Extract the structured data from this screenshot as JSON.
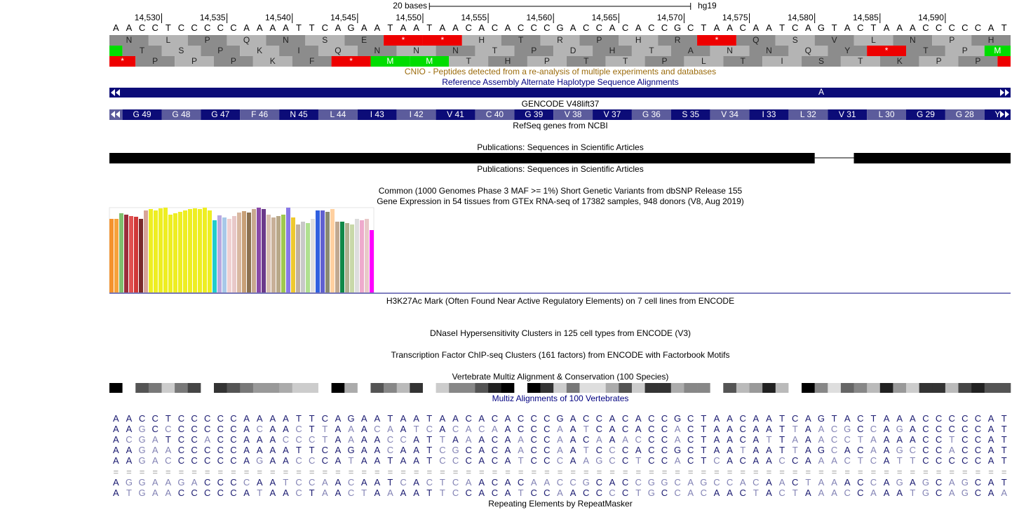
{
  "ruler": {
    "scale_bar": {
      "value": 20,
      "label": "20 bases"
    },
    "assembly": "hg19",
    "xlim": [
      14526,
      14595
    ],
    "xticks": [
      {
        "value": 14530,
        "label": "14,530"
      },
      {
        "value": 14535,
        "label": "14,535"
      },
      {
        "value": 14540,
        "label": "14,540"
      },
      {
        "value": 14545,
        "label": "14,545"
      },
      {
        "value": 14550,
        "label": "14,550"
      },
      {
        "value": 14555,
        "label": "14,555"
      },
      {
        "value": 14560,
        "label": "14,560"
      },
      {
        "value": 14565,
        "label": "14,565"
      },
      {
        "value": 14570,
        "label": "14,570"
      },
      {
        "value": 14575,
        "label": "14,575"
      },
      {
        "value": 14580,
        "label": "14,580"
      },
      {
        "value": 14585,
        "label": "14,585"
      },
      {
        "value": 14590,
        "label": "14,590"
      }
    ]
  },
  "sequence": "AACCTCCCCCAAAATTCAGAATAATAACACACCCGACCACACCGCTAACAATCAGTACTAAACCCCCAT",
  "frames": [
    {
      "start": 14526,
      "aminos": [
        "N",
        "L",
        "P",
        "Q",
        "N",
        "S",
        "E",
        "*",
        "*",
        "H",
        "T",
        "R",
        "P",
        "H",
        "R",
        "*",
        "Q",
        "S",
        "V",
        "L",
        "N",
        "P",
        "H"
      ],
      "colors": [
        "#8c8c8c",
        "#b4b4b4",
        "#8c8c8c",
        "#b4b4b4",
        "#8c8c8c",
        "#b4b4b4",
        "#8c8c8c",
        "#ee0000",
        "#ee0000",
        "#b4b4b4",
        "#8c8c8c",
        "#b4b4b4",
        "#8c8c8c",
        "#b4b4b4",
        "#8c8c8c",
        "#ee0000",
        "#8c8c8c",
        "#b4b4b4",
        "#8c8c8c",
        "#b4b4b4",
        "#8c8c8c",
        "#b4b4b4",
        "#8c8c8c"
      ]
    },
    {
      "start": 14524,
      "aminos": [
        null,
        "T",
        "S",
        "P",
        "K",
        "I",
        "Q",
        "N",
        "N",
        "N",
        "T",
        "P",
        "D",
        "H",
        "T",
        "A",
        "N",
        "N",
        "Q",
        "Y",
        "*",
        "T",
        "P",
        "M"
      ],
      "colors": [
        "#00dd00",
        "#8c8c8c",
        "#b4b4b4",
        "#8c8c8c",
        "#b4b4b4",
        "#8c8c8c",
        "#b4b4b4",
        "#8c8c8c",
        "#b4b4b4",
        "#8c8c8c",
        "#b4b4b4",
        "#8c8c8c",
        "#b4b4b4",
        "#8c8c8c",
        "#b4b4b4",
        "#8c8c8c",
        "#b4b4b4",
        "#8c8c8c",
        "#b4b4b4",
        "#8c8c8c",
        "#ee0000",
        "#8c8c8c",
        "#b4b4b4",
        "#00dd00"
      ]
    },
    {
      "start": 14525,
      "aminos": [
        "*",
        "P",
        "P",
        "P",
        "K",
        "F",
        "*",
        "M",
        "M",
        "T",
        "H",
        "P",
        "T",
        "T",
        "P",
        "L",
        "T",
        "I",
        "S",
        "T",
        "K",
        "P",
        "P",
        null
      ],
      "colors": [
        "#ee0000",
        "#8c8c8c",
        "#b4b4b4",
        "#8c8c8c",
        "#b4b4b4",
        "#8c8c8c",
        "#ee0000",
        "#00dd00",
        "#00dd00",
        "#b4b4b4",
        "#8c8c8c",
        "#b4b4b4",
        "#8c8c8c",
        "#b4b4b4",
        "#8c8c8c",
        "#b4b4b4",
        "#8c8c8c",
        "#b4b4b4",
        "#8c8c8c",
        "#b4b4b4",
        "#8c8c8c",
        "#b4b4b4",
        "#8c8c8c",
        "#ee0000"
      ]
    }
  ],
  "tracks": {
    "cnio": "CNIO - Peptides detected from a re-analysis of multiple experiments and databases",
    "alt_haplotype": {
      "title": "Reference Assembly Alternate Haplotype Sequence Alignments",
      "label": "A"
    },
    "gencode": {
      "title": "GENCODE V48lift37",
      "start": 14524,
      "exons": [
        null,
        "G 49",
        "G 48",
        "G 47",
        "F 46",
        "N 45",
        "L 44",
        "I 43",
        "I 42",
        "V 41",
        "C 40",
        "G 39",
        "V 38",
        "V 37",
        "G 36",
        "S 35",
        "V 34",
        "I 33",
        "L 32",
        "V 31",
        "L 30",
        "G 29",
        "G 28",
        "Y"
      ]
    },
    "refseq": "RefSeq genes from NCBI",
    "publications": {
      "title": "Publications: Sequences in Scientific Articles",
      "blocks": [
        [
          14526,
          14580
        ],
        [
          14583,
          14595
        ]
      ]
    },
    "publications2": "Publications: Sequences in Scientific Articles",
    "dbsnp": "Common (1000 Genomes Phase 3 MAF >= 1%) Short Genetic Variants from dbSNP Release 155",
    "gtex": {
      "title": "Gene Expression in 54 tissues from GTEx RNA-seq of 17382 samples, 948 donors (V8, Aug 2019)",
      "ylim": [
        0,
        121
      ],
      "values": [
        105,
        105,
        113,
        111,
        109,
        108,
        105,
        117,
        119,
        117,
        120,
        121,
        111,
        113,
        115,
        117,
        119,
        120,
        119,
        121,
        117,
        103,
        110,
        107,
        105,
        109,
        114,
        116,
        114,
        119,
        121,
        119,
        111,
        107,
        109,
        111,
        121,
        107,
        97,
        101,
        99,
        105,
        117,
        117,
        115,
        119,
        101,
        101,
        99,
        97,
        105,
        103,
        105,
        89
      ],
      "colors": [
        "#f4922d",
        "#f6a23a",
        "#7fbf6f",
        "#9b2c3c",
        "#e05050",
        "#d03838",
        "#7a2a2a",
        "#d7a497",
        "#eeee22",
        "#eeee22",
        "#eeee22",
        "#eeee22",
        "#eeee22",
        "#eeee22",
        "#eeee22",
        "#eeee22",
        "#eeee22",
        "#eeee22",
        "#eeee22",
        "#eeee22",
        "#eeee22",
        "#22cccc",
        "#b8a8e0",
        "#a8c8e8",
        "#f0d0d0",
        "#e8c8c8",
        "#d8b8a0",
        "#c8a078",
        "#8b7050",
        "#c8a890",
        "#8848a8",
        "#6a3a8a",
        "#d8c0b0",
        "#c8b098",
        "#b8a888",
        "#a0c850",
        "#8878e8",
        "#eec930",
        "#c0b0a0",
        "#c8c8c8",
        "#b0e090",
        "#e0e0e0",
        "#3060e0",
        "#6060d0",
        "#8a8a70",
        "#ffd0a0",
        "#c0a890",
        "#108848",
        "#b0b090",
        "#c8d8a8",
        "#dddddd",
        "#eeaacc",
        "#e8c8c8",
        "#ff00ff"
      ]
    },
    "h3k27ac": "H3K27Ac Mark (Often Found Near Active Regulatory Elements) on 7 cell lines from ENCODE",
    "dnase": "DNaseI Hypersensitivity Clusters in 125 cell types from ENCODE (V3)",
    "tfbs": "Transcription Factor ChIP-seq Clusters (161 factors) from ENCODE with Factorbook Motifs",
    "conservation": {
      "title": "Vertebrate Multiz Alignment & Conservation (100 Species)",
      "values": [
        1,
        0,
        0.67,
        0.53,
        0.2,
        0.53,
        0.73,
        0,
        0.8,
        0.67,
        0.53,
        0.4,
        0.4,
        0.33,
        0.2,
        0.2,
        0,
        1,
        0.33,
        0,
        0.67,
        0.47,
        0.27,
        0.8,
        0,
        0.2,
        0.47,
        0.47,
        0.67,
        0.87,
        1,
        0,
        1,
        0.8,
        0.2,
        0.53,
        0.13,
        0.13,
        0.33,
        0.67,
        0.2,
        0.8,
        0.8,
        0.33,
        0.47,
        0.47,
        0,
        0.67,
        0.27,
        0.4,
        0.87,
        0.27,
        0,
        1,
        0.47,
        0.13,
        0.6,
        0.47,
        0.27,
        0.87,
        0.4,
        0.2,
        0.8,
        0.8,
        0.27,
        0.73,
        0.87,
        0.67,
        0.67
      ]
    },
    "multiz": {
      "title": "Multiz Alignments of 100 Vertebrates",
      "rows": [
        "AACCTCCCCCAAAATTCAGAATAATAACACACCCGACCACACCGCTAACAATCAGTACTAAACCCCCAT",
        "AAGCCCCCCCACAACTTAAACAATCACACAACCCAATCACACCACTAACAATTAACGCCAGACCCCCAT",
        "ACGATCCACCAAACCCTAAAACCATTAAACAACCAACAAACCCACTAACATTAAACCTAAAACCTCCAT",
        "AAGAACCCCCAAAATTCAGAACAATCGCACAACCAATCCCACCGCTAATAATTAGCACAAGCCCACCAT",
        "AAGACCCCCCAGAACCCATAATAATCCCACATCCCAAGCCTCCACTCACAACCAAACTCATTCCCCCAT",
        "=====================================================================",
        "AGGAAGACCCCAATCCAACAATCACTCAACACAACCGCACCGGCAGCCACAACTAAACCAGAGCAGCAT",
        "ATGAACCCCCATAACTAACTAAAATTCCACATCCAACCCCTGCCACAACTACTAAACCAAATGCAGCAA"
      ]
    },
    "rmsk": "Repeating Elements by RepeatMasker"
  }
}
